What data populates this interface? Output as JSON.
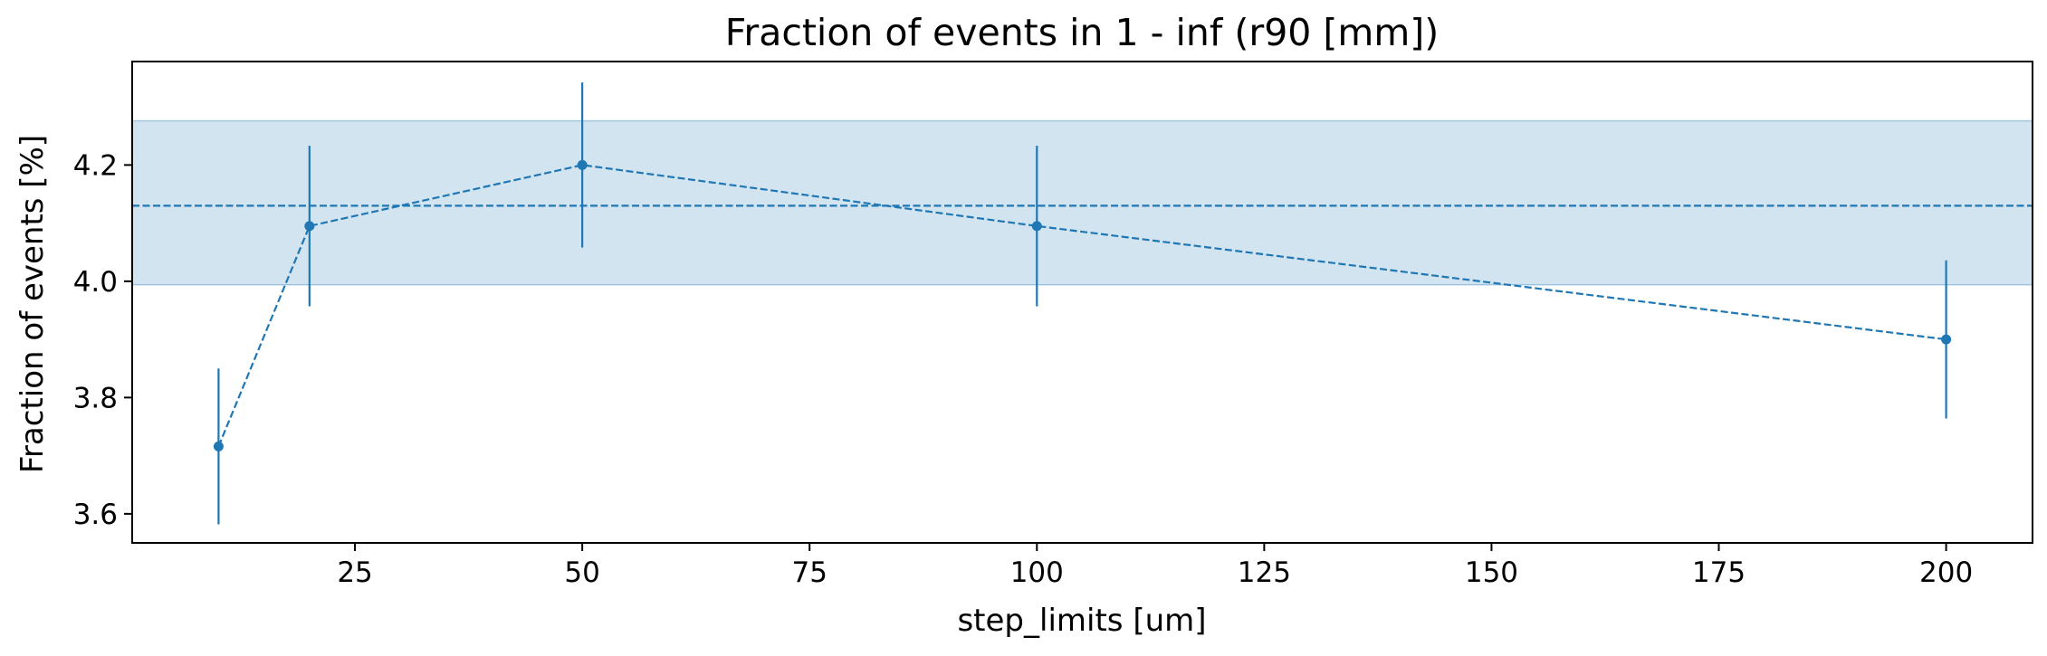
{
  "chart_data": {
    "type": "line",
    "title": "Fraction of events in 1 - inf (r90 [mm])",
    "xlabel": "step_limits [um]",
    "ylabel": "Fraction of events [%]",
    "xlim": [
      0.5,
      209.5
    ],
    "ylim": [
      3.55,
      4.378
    ],
    "xticks": [
      25,
      50,
      75,
      100,
      125,
      150,
      175,
      200
    ],
    "yticks": [
      3.6,
      3.8,
      4.0,
      4.2
    ],
    "grid": false,
    "legend": "none",
    "series": [
      {
        "x": [
          10,
          20,
          50,
          100,
          200
        ],
        "y": [
          3.716,
          4.095,
          4.2,
          4.095,
          3.9
        ],
        "yerr": [
          0.134,
          0.138,
          0.142,
          0.138,
          0.136
        ],
        "linestyle": "dashed",
        "marker": "circle",
        "color": "#1f77b4"
      }
    ],
    "reference_line": {
      "y": 4.13,
      "linestyle": "dashed",
      "color": "#1f77b4"
    },
    "reference_band": {
      "y_low": 3.994,
      "y_high": 4.276,
      "color": "#1f77b4",
      "opacity": 0.2
    }
  }
}
